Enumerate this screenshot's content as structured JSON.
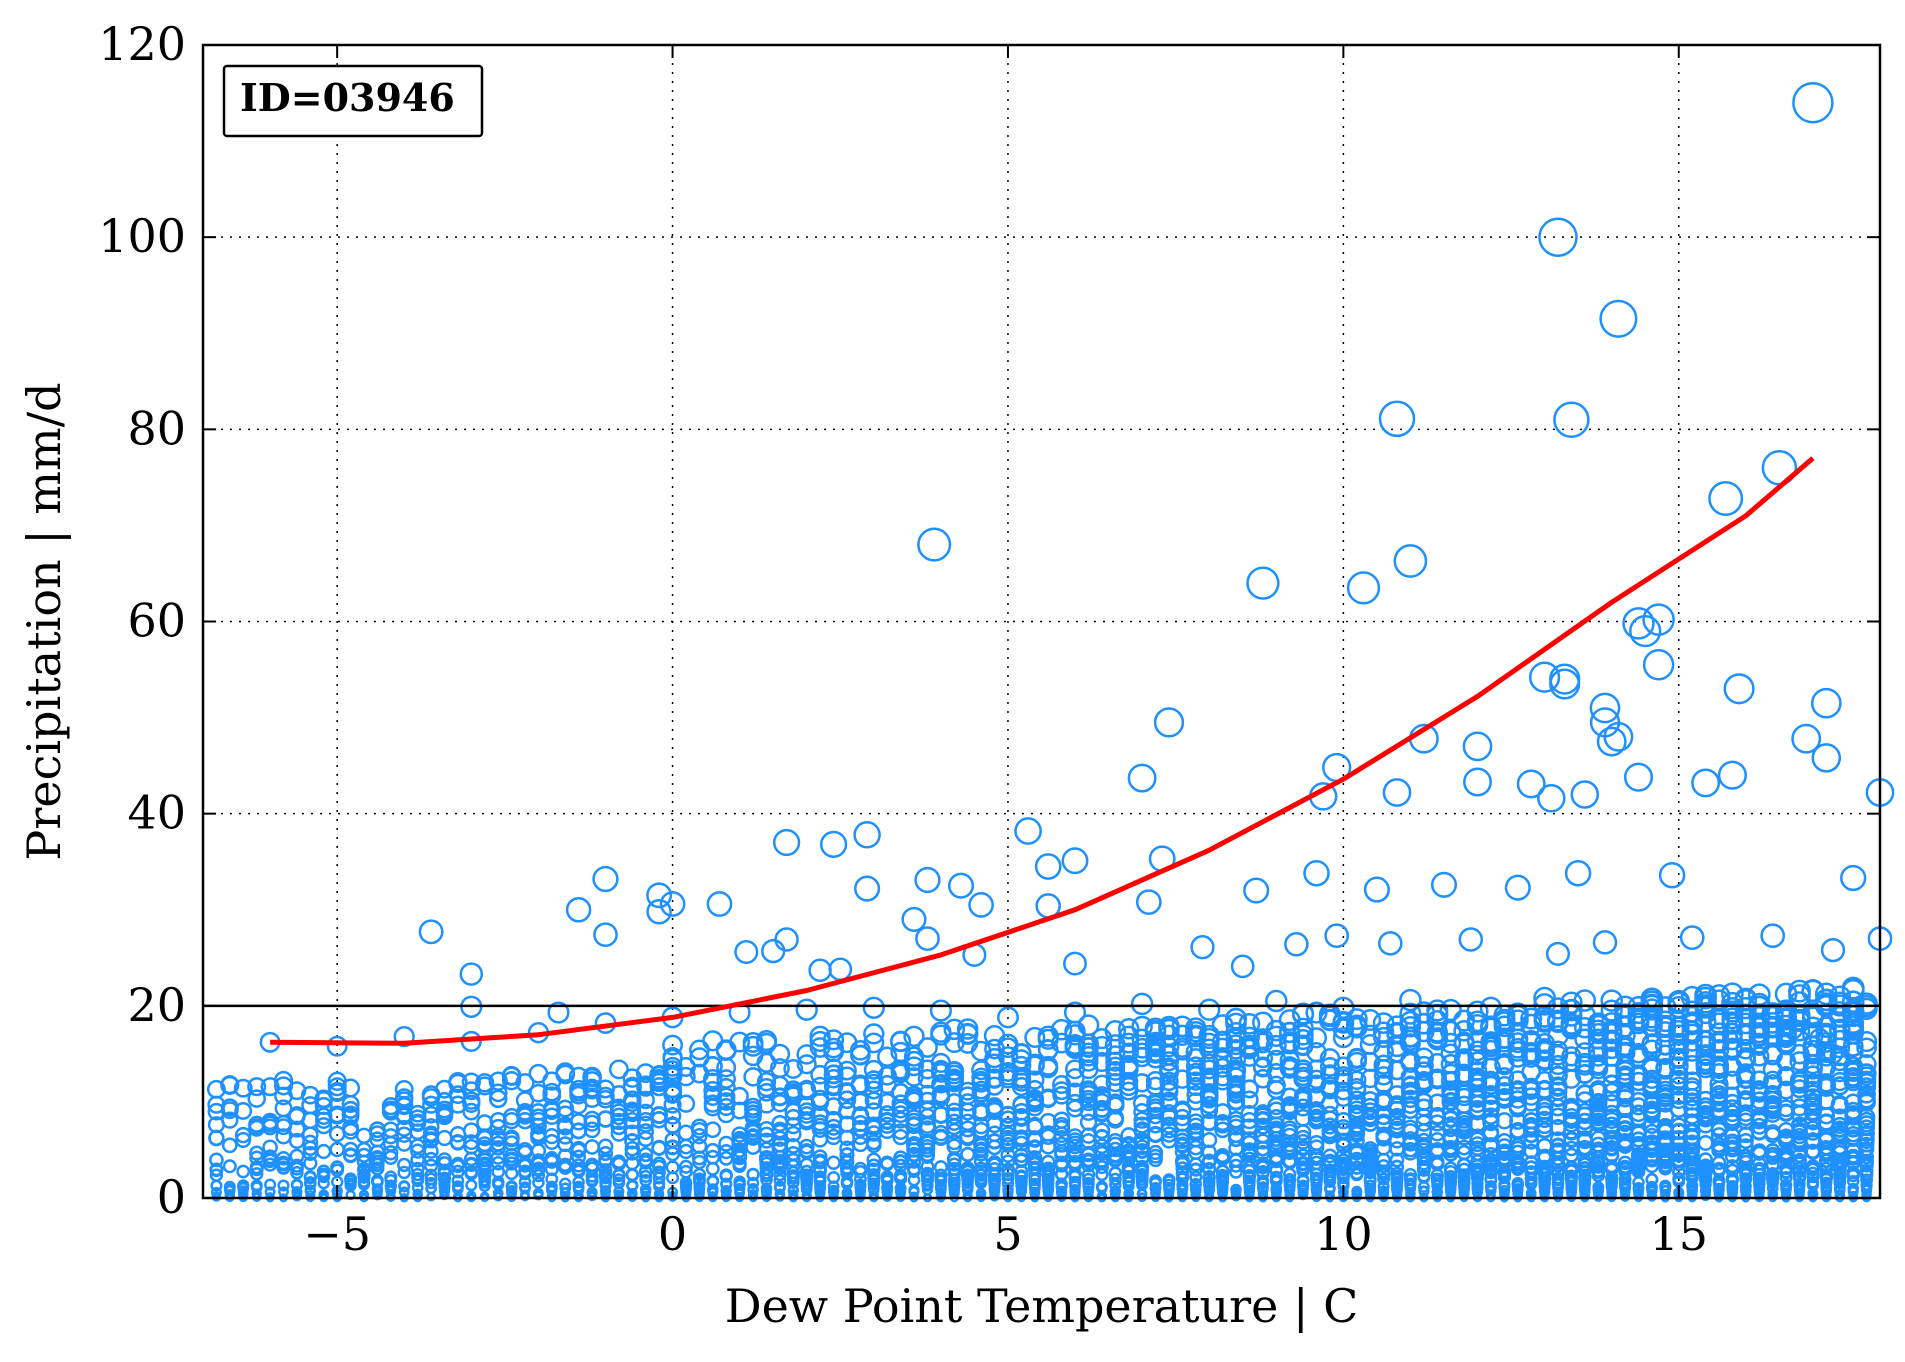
{
  "chart_data": {
    "type": "scatter",
    "title": "",
    "annotation": "ID=03946",
    "xlabel": "Dew Point Temperature | C",
    "ylabel": "Precipitation | mm/d",
    "xlim": [
      -7,
      18
    ],
    "ylim": [
      0,
      120
    ],
    "xticks": [
      -5,
      0,
      5,
      10,
      15
    ],
    "xtick_labels": [
      "−5",
      "0",
      "5",
      "10",
      "15"
    ],
    "yticks": [
      0,
      20,
      40,
      60,
      80,
      100,
      120
    ],
    "ytick_labels": [
      "0",
      "20",
      "40",
      "60",
      "80",
      "100",
      "120"
    ],
    "grid": true,
    "reference_line_y": 20,
    "colors": {
      "points": "#1e90ff",
      "fit": "#ff0000",
      "reference": "#000000"
    },
    "scatter_series": {
      "marker": "open-circle",
      "marker_size_scales_with_value": true,
      "x_step": 0.2,
      "points": [
        [
          3.9,
          68
        ],
        [
          8.8,
          64
        ],
        [
          10.3,
          63.5
        ],
        [
          11.0,
          66.3
        ],
        [
          10.8,
          81.1
        ],
        [
          13.2,
          100
        ],
        [
          14.1,
          91.5
        ],
        [
          13.4,
          81
        ],
        [
          17.0,
          114
        ],
        [
          16.5,
          76
        ],
        [
          15.7,
          72.8
        ],
        [
          14.4,
          59.8
        ],
        [
          14.5,
          59
        ],
        [
          14.7,
          60.2
        ],
        [
          14.7,
          55.5
        ],
        [
          13.0,
          54.2
        ],
        [
          13.3,
          54
        ],
        [
          13.3,
          53.5
        ],
        [
          15.9,
          53
        ],
        [
          17.2,
          51.5
        ],
        [
          17.2,
          45.8
        ],
        [
          16.9,
          47.8
        ],
        [
          13.9,
          51
        ],
        [
          13.9,
          49.5
        ],
        [
          14.1,
          48
        ],
        [
          14.0,
          47.5
        ],
        [
          11.2,
          47.8
        ],
        [
          12.0,
          47
        ],
        [
          7.4,
          49.5
        ],
        [
          9.9,
          44.8
        ],
        [
          9.7,
          41.8
        ],
        [
          10.8,
          42.2
        ],
        [
          12.0,
          43.3
        ],
        [
          12.8,
          43.1
        ],
        [
          13.1,
          41.6
        ],
        [
          13.6,
          42
        ],
        [
          14.4,
          43.8
        ],
        [
          15.4,
          43.2
        ],
        [
          15.8,
          44
        ],
        [
          18.0,
          42.2
        ],
        [
          7.0,
          43.7
        ],
        [
          5.3,
          38.2
        ],
        [
          2.4,
          36.8
        ],
        [
          2.9,
          37.8
        ],
        [
          6.0,
          35.1
        ],
        [
          5.6,
          34.5
        ],
        [
          7.3,
          35.3
        ],
        [
          1.7,
          37
        ],
        [
          -1.0,
          33.2
        ],
        [
          -1.4,
          30.0
        ],
        [
          -1.0,
          27.4
        ],
        [
          -0.2,
          31.5
        ],
        [
          0.0,
          30.6
        ],
        [
          -0.2,
          29.8
        ],
        [
          0.7,
          30.6
        ],
        [
          2.9,
          32.2
        ],
        [
          3.6,
          29
        ],
        [
          3.8,
          33.1
        ],
        [
          4.3,
          32.5
        ],
        [
          4.6,
          30.5
        ],
        [
          5.6,
          30.4
        ],
        [
          7.1,
          30.8
        ],
        [
          8.7,
          32
        ],
        [
          9.6,
          33.8
        ],
        [
          10.5,
          32.1
        ],
        [
          11.5,
          32.6
        ],
        [
          12.6,
          32.3
        ],
        [
          13.5,
          33.8
        ],
        [
          14.9,
          33.6
        ],
        [
          17.6,
          33.3
        ],
        [
          -3.6,
          27.7
        ],
        [
          -3.0,
          23.3
        ],
        [
          -3.0,
          19.9
        ],
        [
          -1.7,
          19.3
        ],
        [
          1.1,
          25.6
        ],
        [
          1.5,
          25.7
        ],
        [
          1.7,
          26.9
        ],
        [
          2.2,
          23.7
        ],
        [
          2.5,
          23.8
        ],
        [
          3.8,
          27
        ],
        [
          4.5,
          25.3
        ],
        [
          6.0,
          24.4
        ],
        [
          7.9,
          26.1
        ],
        [
          8.5,
          24.1
        ],
        [
          9.3,
          26.4
        ],
        [
          9.9,
          27.3
        ],
        [
          10.7,
          26.5
        ],
        [
          11.9,
          26.9
        ],
        [
          13.2,
          25.4
        ],
        [
          13.9,
          26.6
        ],
        [
          15.2,
          27.1
        ],
        [
          16.4,
          27.3
        ],
        [
          17.3,
          25.8
        ],
        [
          18.0,
          27
        ],
        [
          17.6,
          21.6
        ],
        [
          -6.0,
          16.2
        ],
        [
          -5.0,
          15.8
        ],
        [
          -4.0,
          16.8
        ],
        [
          -3.0,
          16.3
        ],
        [
          -2.0,
          17.2
        ],
        [
          -1.0,
          18.2
        ],
        [
          0.0,
          18.8
        ],
        [
          1.0,
          19.3
        ],
        [
          2.0,
          19.6
        ],
        [
          3.0,
          19.8
        ],
        [
          4.0,
          19.5
        ],
        [
          5.0,
          18.8
        ],
        [
          6.0,
          19.3
        ],
        [
          7.0,
          20.2
        ],
        [
          8.0,
          19.6
        ],
        [
          9.0,
          20.5
        ],
        [
          10.0,
          19.8
        ],
        [
          11.0,
          20.6
        ],
        [
          12.0,
          19.4
        ],
        [
          13.0,
          20.8
        ],
        [
          14.0,
          19.5
        ],
        [
          15.0,
          20.3
        ],
        [
          16.0,
          19.1
        ],
        [
          16.7,
          17.6
        ],
        [
          17.1,
          16.6
        ],
        [
          17.3,
          15.0
        ]
      ]
    },
    "fit_curve": {
      "type": "quadratic",
      "x": [
        -6,
        -4,
        -2,
        0,
        2,
        4,
        6,
        8,
        10,
        12,
        14,
        16,
        17
      ],
      "y": [
        16.2,
        16.1,
        17.0,
        18.8,
        21.6,
        25.3,
        30.0,
        36.2,
        43.6,
        52.2,
        62.0,
        71.0,
        77.0
      ]
    }
  }
}
